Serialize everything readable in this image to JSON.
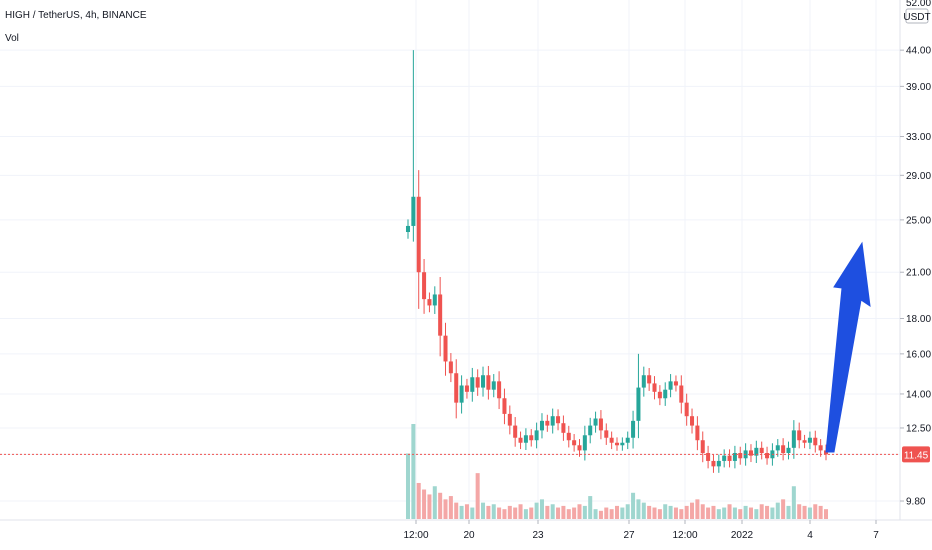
{
  "header": {
    "title": "HIGH / TetherUS, 4h, BINANCE",
    "vol_label": "Vol"
  },
  "axis": {
    "currency": "USDT",
    "top_partial": "52.00"
  },
  "last_price": {
    "value": "11.45",
    "color": "#ef5350"
  },
  "colors": {
    "up": "#26a69a",
    "down": "#ef5350",
    "vol_up": "#9fd6cf",
    "vol_down": "#f4a7a6",
    "arrow": "#1e4fe0",
    "grid": "#f0f3fa"
  },
  "chart_data": {
    "type": "candlestick",
    "title": "HIGH / TetherUS, 4h, BINANCE",
    "y_scale": "log",
    "ylim": [
      9.2,
      52
    ],
    "y_ticks": [
      44.0,
      39.0,
      33.0,
      29.0,
      25.0,
      21.0,
      18.0,
      16.0,
      14.0,
      12.5,
      11.45,
      9.8
    ],
    "y_tick_labels": [
      "44.00",
      "39.00",
      "33.00",
      "29.00",
      "25.00",
      "21.00",
      "18.00",
      "16.00",
      "14.00",
      "12.50",
      "11.45",
      "9.80"
    ],
    "x_tick_labels": [
      "12:00",
      "20",
      "23",
      "27",
      "12:00",
      "2022",
      "4",
      "7"
    ],
    "series_note": "volume shown in lower pane (Vol)",
    "price_path": [
      [
        0,
        24.5
      ],
      [
        1,
        27.0
      ],
      [
        2,
        21.0
      ],
      [
        3,
        19.2
      ],
      [
        4,
        18.8
      ],
      [
        5,
        19.5
      ],
      [
        6,
        17.0
      ],
      [
        7,
        15.6
      ],
      [
        8,
        15.0
      ],
      [
        9,
        13.6
      ],
      [
        10,
        14.4
      ],
      [
        11,
        14.1
      ],
      [
        12,
        14.8
      ],
      [
        13,
        14.3
      ],
      [
        14,
        14.9
      ],
      [
        15,
        14.2
      ],
      [
        16,
        14.6
      ],
      [
        17,
        13.8
      ],
      [
        18,
        13.1
      ],
      [
        19,
        12.6
      ],
      [
        20,
        12.1
      ],
      [
        21,
        11.9
      ],
      [
        22,
        12.2
      ],
      [
        23,
        12.0
      ],
      [
        24,
        12.4
      ],
      [
        25,
        12.8
      ],
      [
        26,
        12.6
      ],
      [
        27,
        13.0
      ],
      [
        28,
        12.7
      ],
      [
        29,
        12.3
      ],
      [
        30,
        12.0
      ],
      [
        31,
        11.8
      ],
      [
        32,
        11.6
      ],
      [
        33,
        12.2
      ],
      [
        34,
        12.6
      ],
      [
        35,
        12.9
      ],
      [
        36,
        12.4
      ],
      [
        37,
        12.1
      ],
      [
        38,
        11.9
      ],
      [
        39,
        11.8
      ],
      [
        40,
        11.9
      ],
      [
        41,
        12.1
      ],
      [
        42,
        12.8
      ],
      [
        43,
        14.3
      ],
      [
        44,
        14.9
      ],
      [
        45,
        14.5
      ],
      [
        46,
        14.1
      ],
      [
        47,
        13.8
      ],
      [
        48,
        14.2
      ],
      [
        49,
        14.6
      ],
      [
        50,
        14.4
      ],
      [
        51,
        13.6
      ],
      [
        52,
        13.0
      ],
      [
        53,
        12.6
      ],
      [
        54,
        12.0
      ],
      [
        55,
        11.5
      ],
      [
        56,
        11.2
      ],
      [
        57,
        11.0
      ],
      [
        58,
        11.2
      ],
      [
        59,
        11.4
      ],
      [
        60,
        11.2
      ],
      [
        61,
        11.5
      ],
      [
        62,
        11.3
      ],
      [
        63,
        11.6
      ],
      [
        64,
        11.4
      ],
      [
        65,
        11.7
      ],
      [
        66,
        11.5
      ],
      [
        67,
        11.3
      ],
      [
        68,
        11.6
      ],
      [
        69,
        11.8
      ],
      [
        70,
        11.5
      ],
      [
        71,
        11.7
      ],
      [
        72,
        12.4
      ],
      [
        73,
        12.0
      ],
      [
        74,
        11.9
      ],
      [
        75,
        12.1
      ],
      [
        76,
        11.8
      ],
      [
        77,
        11.6
      ],
      [
        78,
        11.45
      ]
    ],
    "volume": [
      40,
      58,
      22,
      18,
      15,
      20,
      16,
      12,
      14,
      10,
      8,
      9,
      7,
      28,
      10,
      8,
      9,
      7,
      6,
      8,
      7,
      9,
      6,
      7,
      10,
      12,
      8,
      9,
      7,
      8,
      6,
      7,
      9,
      8,
      14,
      6,
      5,
      7,
      6,
      8,
      7,
      9,
      16,
      12,
      10,
      8,
      7,
      6,
      9,
      8,
      7,
      6,
      8,
      10,
      12,
      9,
      7,
      8,
      6,
      7,
      9,
      7,
      6,
      8,
      7,
      6,
      9,
      8,
      7,
      10,
      12,
      8,
      20,
      9,
      8,
      7,
      9,
      8,
      6
    ]
  }
}
